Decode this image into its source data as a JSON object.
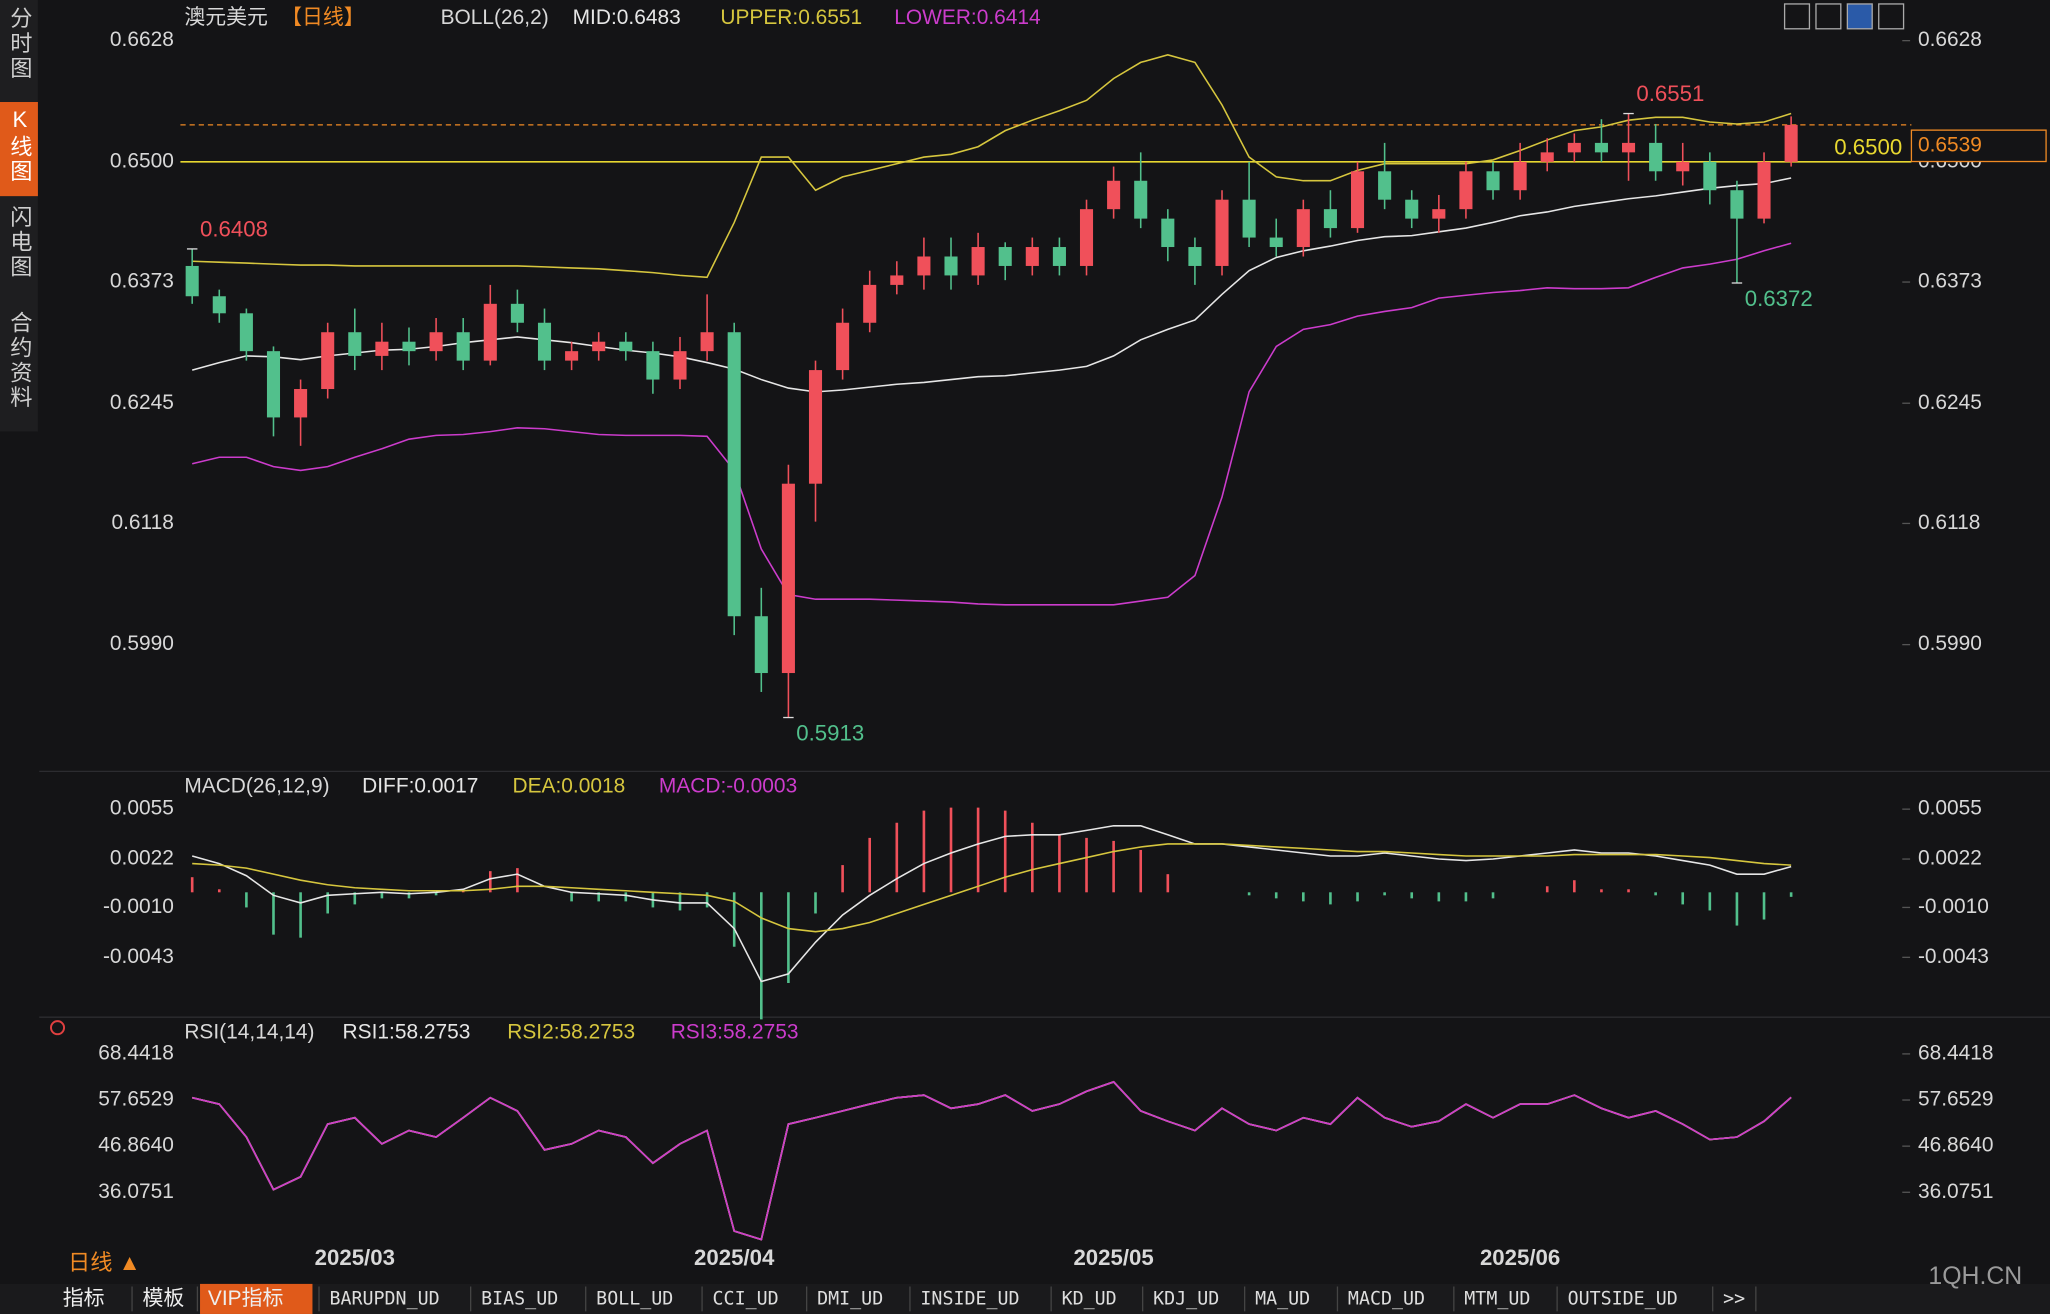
{
  "chart_data": [
    {
      "type": "candlestick",
      "title": "澳元美元",
      "period": "【日线】",
      "indicator": "BOLL(26,2)",
      "categories": [
        null,
        null,
        null,
        null,
        null,
        null,
        "2025/03",
        null,
        null,
        null,
        null,
        null,
        null,
        null,
        null,
        null,
        null,
        null,
        null,
        null,
        "2025/04",
        null,
        null,
        null,
        null,
        null,
        null,
        null,
        null,
        null,
        null,
        null,
        null,
        null,
        "2025/05",
        null,
        null,
        null,
        null,
        null,
        null,
        null,
        null,
        null,
        null,
        null,
        null,
        null,
        null,
        "2025/06",
        null,
        null,
        null,
        null,
        null,
        null,
        null,
        null,
        null,
        null
      ],
      "open": [
        0.639,
        0.6358,
        0.634,
        0.63,
        0.623,
        0.626,
        0.632,
        0.6295,
        0.631,
        0.63,
        0.632,
        0.629,
        0.635,
        0.633,
        0.629,
        0.63,
        0.631,
        0.63,
        0.627,
        0.63,
        0.632,
        0.602,
        0.596,
        0.616,
        0.628,
        0.633,
        0.637,
        0.638,
        0.64,
        0.638,
        0.641,
        0.639,
        0.641,
        0.639,
        0.645,
        0.648,
        0.644,
        0.641,
        0.639,
        0.646,
        0.642,
        0.641,
        0.645,
        0.643,
        0.649,
        0.646,
        0.644,
        0.645,
        0.649,
        0.647,
        0.65,
        0.651,
        0.652,
        0.651,
        0.652,
        0.649,
        0.65,
        0.647,
        0.644,
        0.65
      ],
      "high": [
        0.6408,
        0.6365,
        0.6345,
        0.6305,
        0.627,
        0.633,
        0.6345,
        0.633,
        0.6325,
        0.6335,
        0.6335,
        0.637,
        0.6365,
        0.6345,
        0.631,
        0.632,
        0.632,
        0.631,
        0.6315,
        0.636,
        0.633,
        0.605,
        0.618,
        0.629,
        0.6345,
        0.6385,
        0.6395,
        0.642,
        0.642,
        0.6425,
        0.6415,
        0.642,
        0.642,
        0.646,
        0.6495,
        0.651,
        0.645,
        0.642,
        0.647,
        0.65,
        0.644,
        0.646,
        0.647,
        0.65,
        0.652,
        0.647,
        0.6465,
        0.65,
        0.65,
        0.652,
        0.6525,
        0.653,
        0.6545,
        0.6551,
        0.654,
        0.652,
        0.651,
        0.648,
        0.651,
        0.6548
      ],
      "low": [
        0.635,
        0.633,
        0.629,
        0.621,
        0.62,
        0.625,
        0.628,
        0.628,
        0.6285,
        0.629,
        0.628,
        0.6285,
        0.632,
        0.628,
        0.628,
        0.629,
        0.629,
        0.6255,
        0.626,
        0.629,
        0.6,
        0.594,
        0.5913,
        0.612,
        0.627,
        0.632,
        0.636,
        0.6365,
        0.6365,
        0.637,
        0.6375,
        0.638,
        0.638,
        0.638,
        0.644,
        0.643,
        0.6395,
        0.637,
        0.638,
        0.641,
        0.64,
        0.64,
        0.642,
        0.6425,
        0.645,
        0.643,
        0.6425,
        0.644,
        0.646,
        0.646,
        0.649,
        0.65,
        0.65,
        0.648,
        0.648,
        0.6475,
        0.6455,
        0.6372,
        0.6435,
        0.6495
      ],
      "close": [
        0.6358,
        0.634,
        0.63,
        0.623,
        0.626,
        0.632,
        0.6295,
        0.631,
        0.63,
        0.632,
        0.629,
        0.635,
        0.633,
        0.629,
        0.63,
        0.631,
        0.63,
        0.627,
        0.63,
        0.632,
        0.602,
        0.596,
        0.616,
        0.628,
        0.633,
        0.637,
        0.638,
        0.64,
        0.638,
        0.641,
        0.639,
        0.641,
        0.639,
        0.645,
        0.648,
        0.644,
        0.641,
        0.639,
        0.646,
        0.642,
        0.641,
        0.645,
        0.643,
        0.649,
        0.646,
        0.644,
        0.645,
        0.649,
        0.647,
        0.65,
        0.651,
        0.652,
        0.651,
        0.652,
        0.649,
        0.65,
        0.647,
        0.644,
        0.65,
        0.6539
      ],
      "up_color": "#f0505a",
      "down_color": "#52c08c",
      "series": [
        {
          "name": "MID:0.6483",
          "color": "#e6e6e6",
          "values": [
            0.628,
            0.6288,
            0.6295,
            0.6294,
            0.6291,
            0.6295,
            0.6298,
            0.6301,
            0.6302,
            0.6305,
            0.6309,
            0.6312,
            0.6315,
            0.6312,
            0.6309,
            0.6305,
            0.6301,
            0.6298,
            0.6294,
            0.6288,
            0.6281,
            0.627,
            0.6261,
            0.6257,
            0.6259,
            0.6262,
            0.6265,
            0.6267,
            0.627,
            0.6273,
            0.6274,
            0.6277,
            0.628,
            0.6284,
            0.6295,
            0.6312,
            0.6323,
            0.6333,
            0.636,
            0.6385,
            0.6399,
            0.6406,
            0.6411,
            0.6417,
            0.6421,
            0.6422,
            0.6426,
            0.643,
            0.6436,
            0.6443,
            0.6447,
            0.6453,
            0.6457,
            0.6461,
            0.6464,
            0.6468,
            0.6472,
            0.6475,
            0.6477,
            0.6483
          ]
        },
        {
          "name": "UPPER:0.6551",
          "color": "#d6c63e",
          "values": [
            0.6395,
            0.6394,
            0.6393,
            0.6392,
            0.6391,
            0.6391,
            0.639,
            0.639,
            0.639,
            0.639,
            0.639,
            0.639,
            0.639,
            0.6389,
            0.6388,
            0.6387,
            0.6385,
            0.6383,
            0.638,
            0.6378,
            0.6436,
            0.6505,
            0.6505,
            0.647,
            0.6484,
            0.6491,
            0.6498,
            0.6505,
            0.6508,
            0.6516,
            0.6533,
            0.6544,
            0.6554,
            0.6565,
            0.6588,
            0.6605,
            0.6613,
            0.6605,
            0.656,
            0.6505,
            0.6484,
            0.648,
            0.648,
            0.6491,
            0.6498,
            0.6498,
            0.6498,
            0.6498,
            0.6502,
            0.6512,
            0.6523,
            0.6533,
            0.6537,
            0.6544,
            0.6547,
            0.6547,
            0.6542,
            0.654,
            0.6542,
            0.6551
          ]
        },
        {
          "name": "LOWER:0.6414",
          "color": "#cc3ccc",
          "values": [
            0.6181,
            0.6188,
            0.6188,
            0.6178,
            0.6174,
            0.6178,
            0.6188,
            0.6197,
            0.6207,
            0.6211,
            0.6212,
            0.6215,
            0.6219,
            0.6218,
            0.6215,
            0.6212,
            0.6211,
            0.6211,
            0.6211,
            0.621,
            0.6174,
            0.6091,
            0.6043,
            0.6038,
            0.6038,
            0.6038,
            0.6037,
            0.6036,
            0.6035,
            0.6033,
            0.6032,
            0.6032,
            0.6032,
            0.6032,
            0.6032,
            0.6036,
            0.604,
            0.6063,
            0.6146,
            0.6257,
            0.6305,
            0.6323,
            0.6328,
            0.6337,
            0.6342,
            0.6346,
            0.6356,
            0.6359,
            0.6362,
            0.6364,
            0.6367,
            0.6366,
            0.6366,
            0.6367,
            0.6378,
            0.6388,
            0.6392,
            0.6397,
            0.6406,
            0.6414
          ]
        }
      ],
      "annotations": [
        0.6408,
        0.5913,
        0.6551,
        0.6372
      ],
      "hline": {
        "value": 0.65,
        "label": "0.6500",
        "color": "#e8d830"
      },
      "last_price": 0.6539,
      "last_color": "#f08a24",
      "ylim": [
        0.5863,
        0.6664
      ],
      "yticks": [
        0.6628,
        {
          "value": 0.65,
          "label": "0.6500"
        },
        0.6373,
        0.6245,
        0.6118,
        {
          "value": 0.599,
          "label": "0.5990"
        }
      ]
    },
    {
      "type": "macd",
      "title": "MACD(26,12,9)",
      "series": [
        {
          "name": "DIFF:0.0017",
          "color": "#e6e6e6",
          "values": [
            0.0024,
            0.0019,
            0.0011,
            -0.0002,
            -0.0007,
            -0.0002,
            -0.0001,
            0.0,
            -0.0001,
            0.0,
            0.0002,
            0.0009,
            0.0012,
            0.0004,
            0.0,
            -0.0001,
            -0.0002,
            -0.0005,
            -0.0007,
            -0.0007,
            -0.0024,
            -0.0059,
            -0.0054,
            -0.0033,
            -0.0015,
            -0.0002,
            0.0009,
            0.0019,
            0.0026,
            0.0032,
            0.0037,
            0.0038,
            0.0038,
            0.0041,
            0.0044,
            0.0044,
            0.0038,
            0.0032,
            0.0032,
            0.003,
            0.0028,
            0.0026,
            0.0024,
            0.0024,
            0.0026,
            0.0024,
            0.0022,
            0.0021,
            0.0022,
            0.0024,
            0.0026,
            0.0028,
            0.0026,
            0.0026,
            0.0024,
            0.0021,
            0.0018,
            0.0012,
            0.0012,
            0.0017
          ]
        },
        {
          "name": "DEA:0.0018",
          "color": "#d6c63e",
          "values": [
            0.0019,
            0.0018,
            0.0016,
            0.0012,
            0.0008,
            0.0005,
            0.0003,
            0.0002,
            0.0001,
            0.0001,
            0.0001,
            0.0002,
            0.0004,
            0.0004,
            0.0003,
            0.0002,
            0.0001,
            0.0,
            -0.0001,
            -0.0002,
            -0.0006,
            -0.0017,
            -0.0024,
            -0.0026,
            -0.0024,
            -0.002,
            -0.0014,
            -0.0008,
            -0.0002,
            0.0004,
            0.001,
            0.0015,
            0.0019,
            0.0023,
            0.0027,
            0.003,
            0.0032,
            0.0032,
            0.0032,
            0.0031,
            0.003,
            0.0029,
            0.0028,
            0.0027,
            0.0027,
            0.0026,
            0.0025,
            0.0024,
            0.0024,
            0.0024,
            0.0024,
            0.0025,
            0.0025,
            0.0025,
            0.0025,
            0.0024,
            0.0023,
            0.0021,
            0.0019,
            0.0018
          ]
        },
        {
          "name": "MACD:-0.0003",
          "color": "#cc3ccc",
          "type": "bar",
          "up_color": "#f0505a",
          "down_color": "#52c08c",
          "values": [
            0.001,
            0.0002,
            -0.001,
            -0.0028,
            -0.003,
            -0.0014,
            -0.0008,
            -0.0004,
            -0.0004,
            -0.0002,
            0.0002,
            0.0014,
            0.0016,
            0.0,
            -0.0006,
            -0.0006,
            -0.0006,
            -0.001,
            -0.0012,
            -0.001,
            -0.0036,
            -0.0084,
            -0.006,
            -0.0014,
            0.0018,
            0.0036,
            0.0046,
            0.0054,
            0.0056,
            0.0056,
            0.0054,
            0.0046,
            0.0038,
            0.0036,
            0.0034,
            0.0028,
            0.0012,
            0.0,
            0.0,
            -0.0002,
            -0.0004,
            -0.0006,
            -0.0008,
            -0.0006,
            -0.0002,
            -0.0004,
            -0.0006,
            -0.0006,
            -0.0004,
            0.0,
            0.0004,
            0.0008,
            0.0002,
            0.0002,
            -0.0002,
            -0.0008,
            -0.0012,
            -0.0022,
            -0.0018,
            -0.0003
          ]
        }
      ],
      "ylim": [
        -0.008,
        0.0067
      ],
      "yticks": [
        0.0055,
        0.0022,
        {
          "value": -0.001,
          "label": "-0.0010"
        },
        -0.0043
      ]
    },
    {
      "type": "line",
      "title": "RSI(14,14,14)",
      "series": [
        {
          "name": "RSI1:58.2753",
          "color": "#e6e6e6",
          "values": [
            58.2,
            56.7,
            49.0,
            36.7,
            39.7,
            52.0,
            53.5,
            47.4,
            50.5,
            49.0,
            53.5,
            58.2,
            55.1,
            46.0,
            47.4,
            50.5,
            49.0,
            42.9,
            47.4,
            50.5,
            27.0,
            25.0,
            52.0,
            53.5,
            55.1,
            56.7,
            58.2,
            58.8,
            55.7,
            56.7,
            58.8,
            55.1,
            56.7,
            59.7,
            61.9,
            55.1,
            52.7,
            50.5,
            55.7,
            52.0,
            50.5,
            53.5,
            52.0,
            58.2,
            53.5,
            51.4,
            52.7,
            56.7,
            53.5,
            56.7,
            56.7,
            58.8,
            55.7,
            53.5,
            55.1,
            52.0,
            48.4,
            49.0,
            52.7,
            58.2753
          ]
        },
        {
          "name": "RSI2:58.2753",
          "color": "#d6c63e",
          "values": [
            58.2,
            56.7,
            49.0,
            36.7,
            39.7,
            52.0,
            53.5,
            47.4,
            50.5,
            49.0,
            53.5,
            58.2,
            55.1,
            46.0,
            47.4,
            50.5,
            49.0,
            42.9,
            47.4,
            50.5,
            27.0,
            25.0,
            52.0,
            53.5,
            55.1,
            56.7,
            58.2,
            58.8,
            55.7,
            56.7,
            58.8,
            55.1,
            56.7,
            59.7,
            61.9,
            55.1,
            52.7,
            50.5,
            55.7,
            52.0,
            50.5,
            53.5,
            52.0,
            58.2,
            53.5,
            51.4,
            52.7,
            56.7,
            53.5,
            56.7,
            56.7,
            58.8,
            55.7,
            53.5,
            55.1,
            52.0,
            48.4,
            49.0,
            52.7,
            58.2753
          ]
        },
        {
          "name": "RSI3:58.2753",
          "color": "#cc3ccc",
          "values": [
            58.2,
            56.7,
            49.0,
            36.7,
            39.7,
            52.0,
            53.5,
            47.4,
            50.5,
            49.0,
            53.5,
            58.2,
            55.1,
            46.0,
            47.4,
            50.5,
            49.0,
            42.9,
            47.4,
            50.5,
            27.0,
            25.0,
            52.0,
            53.5,
            55.1,
            56.7,
            58.2,
            58.8,
            55.7,
            56.7,
            58.8,
            55.1,
            56.7,
            59.7,
            61.9,
            55.1,
            52.7,
            50.5,
            55.7,
            52.0,
            50.5,
            53.5,
            52.0,
            58.2,
            53.5,
            51.4,
            52.7,
            56.7,
            53.5,
            56.7,
            56.7,
            58.8,
            55.7,
            53.5,
            55.1,
            52.0,
            48.4,
            49.0,
            52.7,
            58.2753
          ]
        }
      ],
      "ylim": [
        22.9,
        70.3
      ],
      "yticks": [
        68.4418,
        57.6529,
        {
          "value": 46.864,
          "label": "46.8640"
        },
        36.0751
      ]
    }
  ],
  "ui": {
    "side_tabs": [
      "分时图",
      "K线图",
      "闪电图",
      "合约资料"
    ],
    "period_button": "日线 ▲",
    "bottom_tabs": [
      "指标",
      "模板",
      "VIP指标",
      "BARUPDN_UD",
      "BIAS_UD",
      "BOLL_UD",
      "CCI_UD",
      "DMI_UD",
      "INSIDE_UD",
      "KD_UD",
      "KDJ_UD",
      "MA_UD",
      "MACD_UD",
      "MTM_UD",
      "OUTSIDE_UD",
      ">>"
    ],
    "watermark": "1QH.CN"
  }
}
